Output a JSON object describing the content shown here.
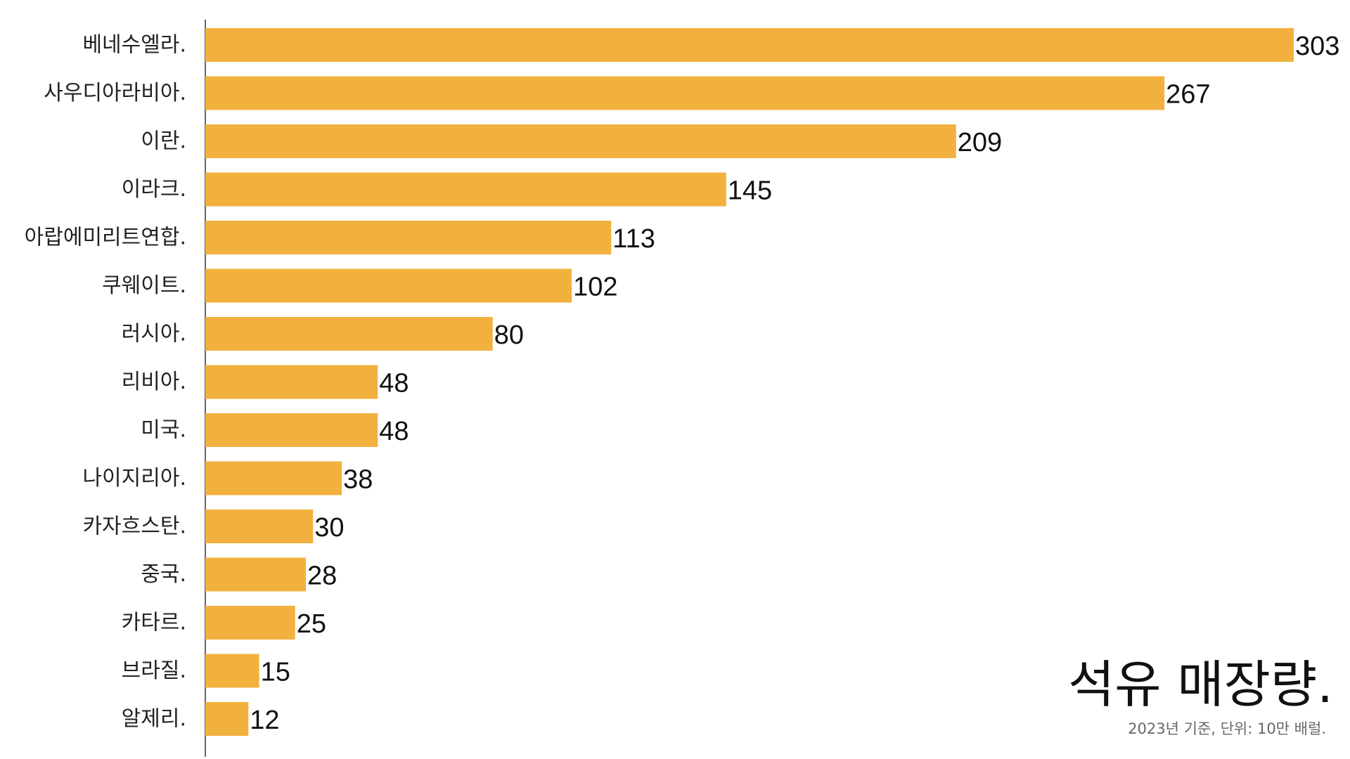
{
  "chart_data": {
    "type": "bar",
    "orientation": "horizontal",
    "title": "석유 매장량.",
    "subtitle": "2023년 기준, 단위: 10만 배럴.",
    "categories": [
      "베네수엘라.",
      "사우디아라비아.",
      "이란.",
      "이라크.",
      "아랍에미리트연합.",
      "쿠웨이트.",
      "러시아.",
      "리비아.",
      "미국.",
      "나이지리아.",
      "카자흐스탄.",
      "중국.",
      "카타르.",
      "브라질.",
      "알제리."
    ],
    "values": [
      303,
      267,
      209,
      145,
      113,
      102,
      80,
      48,
      48,
      38,
      30,
      28,
      25,
      15,
      12
    ],
    "xlim": [
      0,
      303
    ],
    "bar_color": "#F2B13E",
    "grid": false,
    "legend": false,
    "data_labels": true
  }
}
